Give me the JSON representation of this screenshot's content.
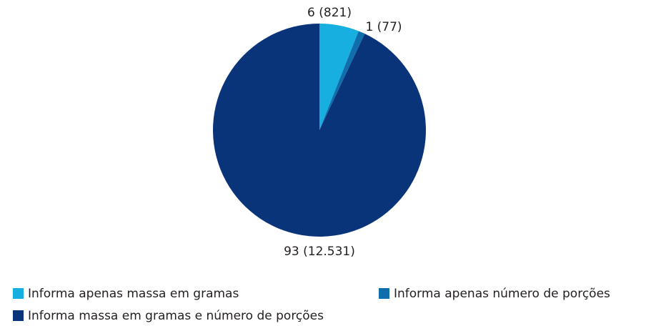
{
  "chart_data": {
    "type": "pie",
    "categories": [
      "Informa apenas massa em gramas",
      "Informa apenas número de porções",
      "Informa massa em gramas e número de porções"
    ],
    "values": [
      6,
      1,
      93
    ],
    "value_labels": [
      "6 (821)",
      "1 (77)",
      "93 (12.531)"
    ],
    "colors": [
      "#17afe0",
      "#0f6eab",
      "#0a347a"
    ],
    "legend": "bottom"
  }
}
